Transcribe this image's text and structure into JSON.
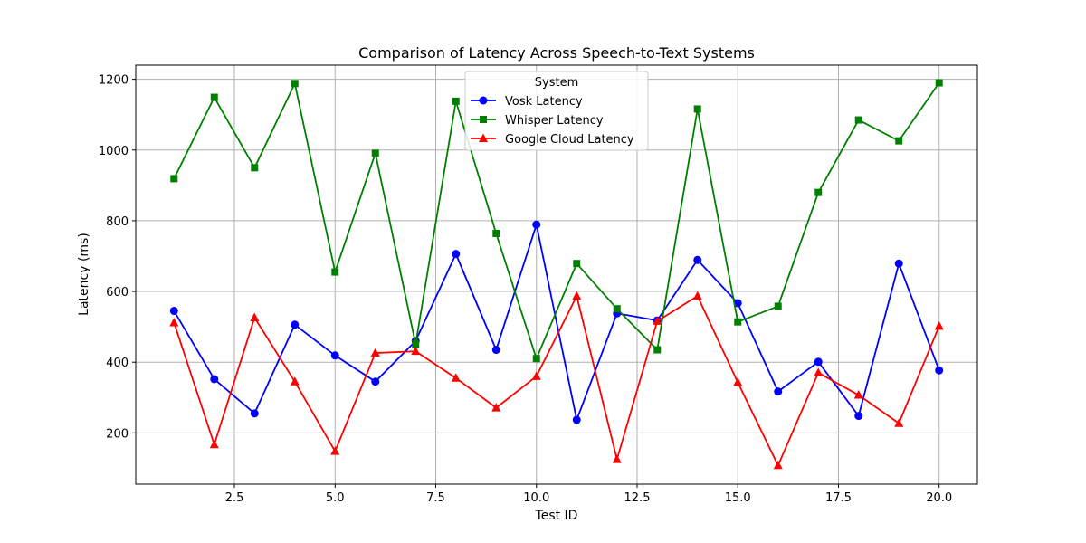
{
  "chart_data": {
    "type": "line",
    "title": "Comparison of Latency Across Speech-to-Text Systems",
    "xlabel": "Test ID",
    "ylabel": "Latency (ms)",
    "xlim": [
      0.05,
      20.95
    ],
    "ylim": [
      55,
      1240
    ],
    "xticks": [
      2.5,
      5.0,
      7.5,
      10.0,
      12.5,
      15.0,
      17.5,
      20.0
    ],
    "yticks": [
      200,
      400,
      600,
      800,
      1000,
      1200
    ],
    "grid": true,
    "legend": {
      "title": "System",
      "placement": "upper-center"
    },
    "x": [
      1,
      2,
      3,
      4,
      5,
      6,
      7,
      8,
      9,
      10,
      11,
      12,
      13,
      14,
      15,
      16,
      17,
      18,
      19,
      20
    ],
    "series": [
      {
        "name": "Vosk Latency",
        "color": "#0000ff",
        "marker": "circle",
        "values": [
          545,
          352,
          255,
          506,
          419,
          345,
          460,
          706,
          435,
          789,
          237,
          538,
          518,
          689,
          567,
          317,
          401,
          248,
          679,
          377
        ]
      },
      {
        "name": "Whisper Latency",
        "color": "#008000",
        "marker": "square",
        "values": [
          919,
          1149,
          950,
          1188,
          655,
          991,
          451,
          1138,
          764,
          410,
          679,
          551,
          435,
          1116,
          514,
          558,
          880,
          1085,
          1026,
          1190
        ]
      },
      {
        "name": "Google Cloud Latency",
        "color": "#ff0000",
        "marker": "triangle",
        "values": [
          512,
          167,
          526,
          345,
          148,
          426,
          431,
          355,
          271,
          360,
          587,
          125,
          516,
          587,
          343,
          108,
          370,
          307,
          227,
          502
        ]
      }
    ]
  }
}
